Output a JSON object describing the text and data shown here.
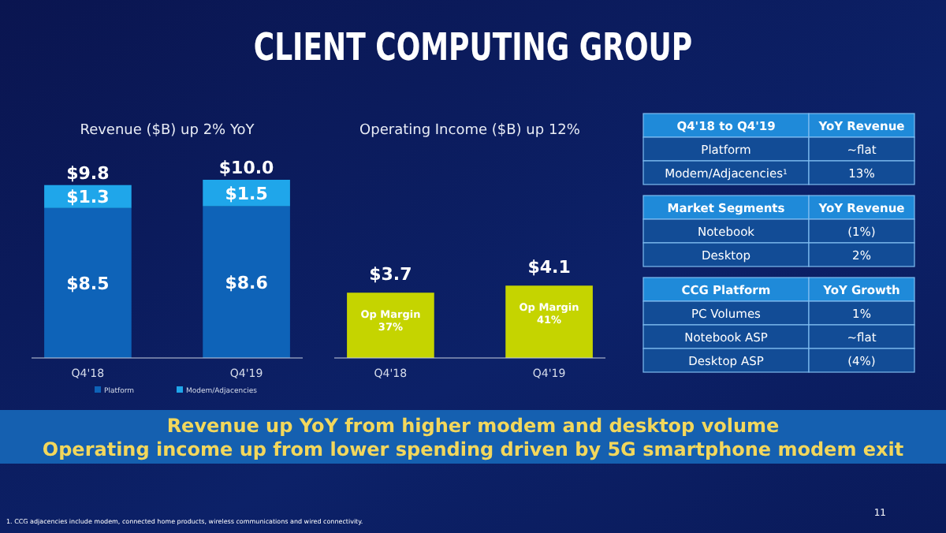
{
  "chart_data": [
    {
      "type": "other",
      "title": "CLIENT COMPUTING GROUP",
      "annotations": [
        "Revenue up YoY from higher modem and desktop volume",
        "Operating income up from lower spending driven by 5G smartphone modem exit",
        "1. CCG adjacencies include modem, connected home products, wireless communications and wired connectivity.",
        "11"
      ]
    },
    {
      "type": "bar",
      "title": "Revenue ($B) up 2% YoY",
      "categories": [
        "Q4'18",
        "Q4'19"
      ],
      "stacked": true,
      "legend": "bottom",
      "series": [
        {
          "name": "Platform",
          "color": "#0e63b8",
          "values": [
            8.5,
            8.6
          ],
          "value_labels": [
            "$8.5",
            "$8.6"
          ]
        },
        {
          "name": "Modem/Adjacencies",
          "color": "#1fa6ea",
          "values": [
            1.3,
            1.5
          ],
          "value_labels": [
            "$1.3",
            "$1.5"
          ]
        }
      ],
      "totals": [
        "$9.8",
        "$10.0"
      ]
    },
    {
      "type": "bar",
      "title": "Operating Income ($B) up 12%",
      "categories": [
        "Q4'18",
        "Q4'19"
      ],
      "values": [
        3.7,
        4.1
      ],
      "color": "#c5d400",
      "value_labels": [
        "$3.7",
        "$4.1"
      ],
      "annotations": [
        "Op Margin 37%",
        "Op Margin 41%"
      ]
    },
    {
      "type": "other",
      "title": "Q4'18 to Q4'19",
      "subtitle": "YoY Revenue",
      "categories": [
        "Platform",
        "Modem/Adjacencies$^{1}$"
      ],
      "value_labels": [
        "~flat",
        "13%"
      ]
    },
    {
      "type": "other",
      "title": "Market Segments",
      "subtitle": "YoY Revenue",
      "categories": [
        "Notebook",
        "Desktop"
      ],
      "value_labels": [
        "(1%)",
        "2%"
      ]
    },
    {
      "type": "other",
      "title": "CCG Platform",
      "subtitle": "YoY Growth",
      "categories": [
        "PC Volumes",
        "Notebook ASP",
        "Desktop ASP"
      ],
      "value_labels": [
        "1%",
        "~flat",
        "(4%)"
      ]
    }
  ]
}
